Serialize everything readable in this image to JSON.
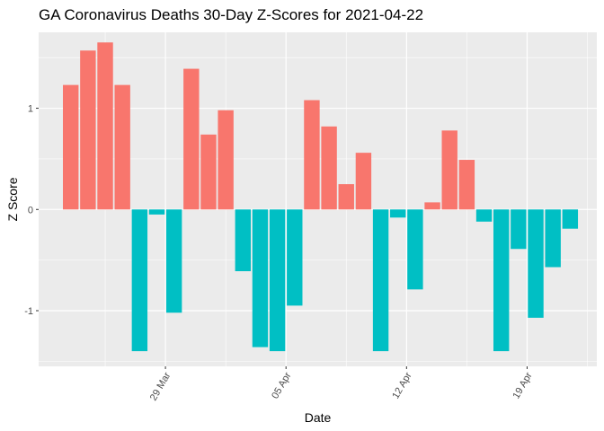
{
  "chart_data": {
    "type": "bar",
    "title": "GA Coronavirus Deaths 30-Day Z-Scores for 2021-04-22",
    "xlabel": "Date",
    "ylabel": "Z Score",
    "ylim": [
      -1.55,
      1.75
    ],
    "y_ticks": [
      {
        "value": 1,
        "label": "1"
      },
      {
        "value": 0,
        "label": "0"
      },
      {
        "value": -1,
        "label": "-1"
      }
    ],
    "x_ticks": [
      {
        "index": 5.5,
        "label": "29 Mar"
      },
      {
        "index": 12.5,
        "label": "05 Apr"
      },
      {
        "index": 19.5,
        "label": "12 Apr"
      },
      {
        "index": 26.5,
        "label": "19 Apr"
      }
    ],
    "positive_color": "#F8766D",
    "negative_color": "#00BFC4",
    "panel_color": "#EBEBEB",
    "grid_color": "#FFFFFF",
    "values": [
      1.23,
      1.57,
      1.65,
      1.23,
      -1.4,
      -0.05,
      -1.02,
      1.39,
      0.74,
      0.98,
      -0.61,
      -1.36,
      -1.4,
      -0.95,
      1.08,
      0.82,
      0.25,
      0.56,
      -1.4,
      -0.08,
      -0.79,
      0.07,
      0.78,
      0.49,
      -0.12,
      -1.4,
      -0.39,
      -1.07,
      -0.57,
      -0.19
    ]
  }
}
